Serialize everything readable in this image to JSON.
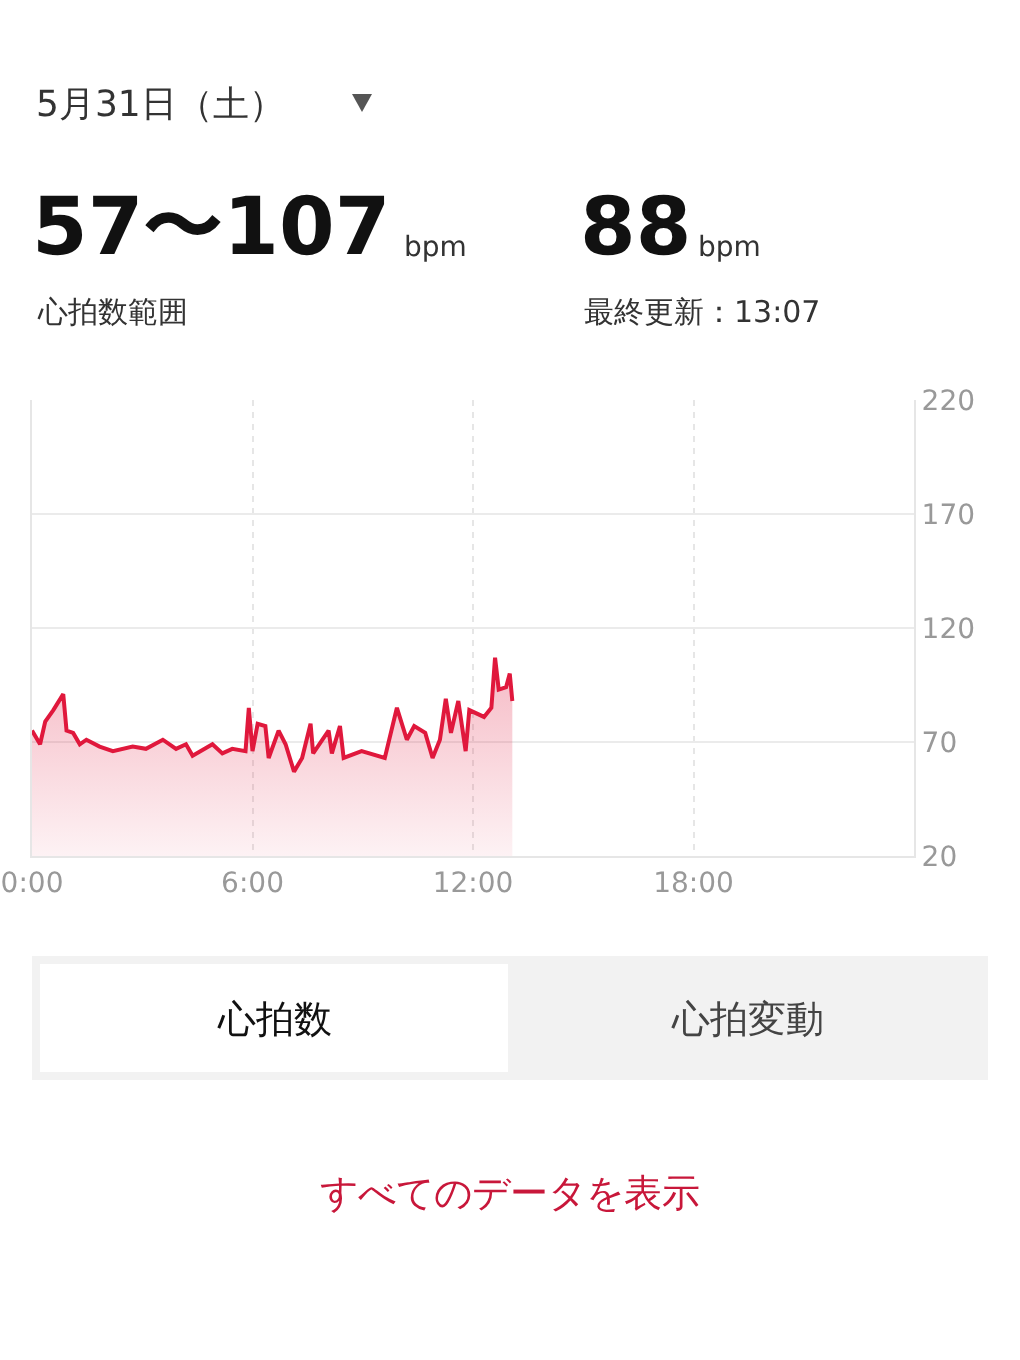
{
  "chart_data": {
    "type": "area",
    "title": "5月31日（土）",
    "annotations": [
      "57〜107",
      "bpm",
      "心拍数範囲",
      "88",
      "bpm",
      "最終更新：13:07",
      "心拍数",
      "心拍変動",
      "すべてのデータを表示"
    ],
    "x": [
      0,
      0.22,
      0.36,
      0.58,
      0.85,
      0.94,
      1.12,
      1.3,
      1.48,
      1.84,
      2.2,
      2.74,
      3.1,
      3.56,
      3.92,
      4.19,
      4.37,
      4.91,
      5.18,
      5.45,
      5.81,
      5.9,
      6.0,
      6.14,
      6.35,
      6.44,
      6.71,
      6.9,
      7.13,
      7.35,
      7.58,
      7.65,
      8.07,
      8.16,
      8.38,
      8.48,
      8.97,
      9.6,
      9.93,
      10.2,
      10.4,
      10.7,
      10.9,
      11.1,
      11.26,
      11.4,
      11.6,
      11.8,
      11.9,
      12.3,
      12.5,
      12.6,
      12.7,
      12.9,
      13.0,
      13.07
    ],
    "series": [
      {
        "color": "#e0183c",
        "values": [
          75,
          69,
          79,
          84,
          91,
          75,
          74,
          69,
          71,
          68,
          66,
          68,
          67,
          71,
          67,
          69,
          64,
          69,
          65,
          67,
          66,
          85,
          66,
          78,
          77,
          63,
          75,
          69,
          57,
          63,
          78,
          65,
          75,
          65,
          77,
          63,
          66,
          63,
          85,
          71,
          77,
          74,
          63,
          71,
          89,
          74,
          88,
          66,
          84,
          81,
          85,
          107,
          93,
          94,
          100,
          88
        ]
      }
    ],
    "xlim": [
      0,
      24
    ],
    "xticks": [
      {
        "value": 0,
        "label": "0:00"
      },
      {
        "value": 6,
        "label": "6:00"
      },
      {
        "value": 12,
        "label": "12:00"
      },
      {
        "value": 18,
        "label": "18:00"
      }
    ],
    "ylim": [
      20,
      220
    ],
    "yticks": [
      20,
      70,
      120,
      170,
      220
    ],
    "grid": true,
    "legend": false,
    "marker": "none",
    "line_style": "solid"
  }
}
